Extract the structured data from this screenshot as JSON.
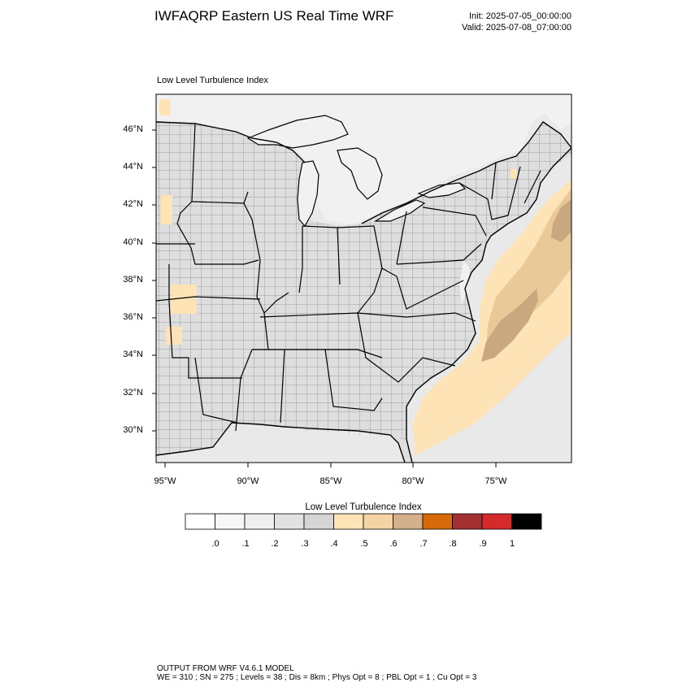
{
  "header": {
    "title": "IWFAQRP Eastern US Real Time WRF",
    "init": "Init: 2025-07-05_00:00:00",
    "valid": "Valid: 2025-07-08_07:00:00"
  },
  "map": {
    "subtitle": "Low Level Turbulence Index",
    "lat_labels": [
      "46°N",
      "44°N",
      "42°N",
      "40°N",
      "38°N",
      "36°N",
      "34°N",
      "32°N",
      "30°N"
    ],
    "lon_labels": [
      "95°W",
      "90°W",
      "85°W",
      "80°W",
      "75°W"
    ],
    "colors": {
      "land": "#dedede",
      "water": "#f1f1f1",
      "ocean": "#e9e9e9",
      "light_tan": "#fde3b5",
      "mid_tan": "#e9c997",
      "dark_tan": "#c9a880",
      "borders": "#000000"
    }
  },
  "colorbar": {
    "title": "Low Level Turbulence Index",
    "labels": [
      ".0",
      ".1",
      ".2",
      ".3",
      ".4",
      ".5",
      ".6",
      ".7",
      ".8",
      ".9",
      "1"
    ],
    "colors": [
      "#ffffff",
      "#f7f7f7",
      "#efefef",
      "#e1e1e1",
      "#d5d5d5",
      "#fde3b5",
      "#f6d3a4",
      "#d4b08c",
      "#d66a08",
      "#a33030",
      "#d42a2c",
      "#000000"
    ]
  },
  "footer": {
    "line1": "OUTPUT FROM WRF V4.6.1 MODEL",
    "line2": "WE = 310 ; SN = 275 ; Levels = 38 ; Dis = 8km ; Phys Opt = 8 ; PBL Opt = 1 ; Cu Opt = 3"
  }
}
